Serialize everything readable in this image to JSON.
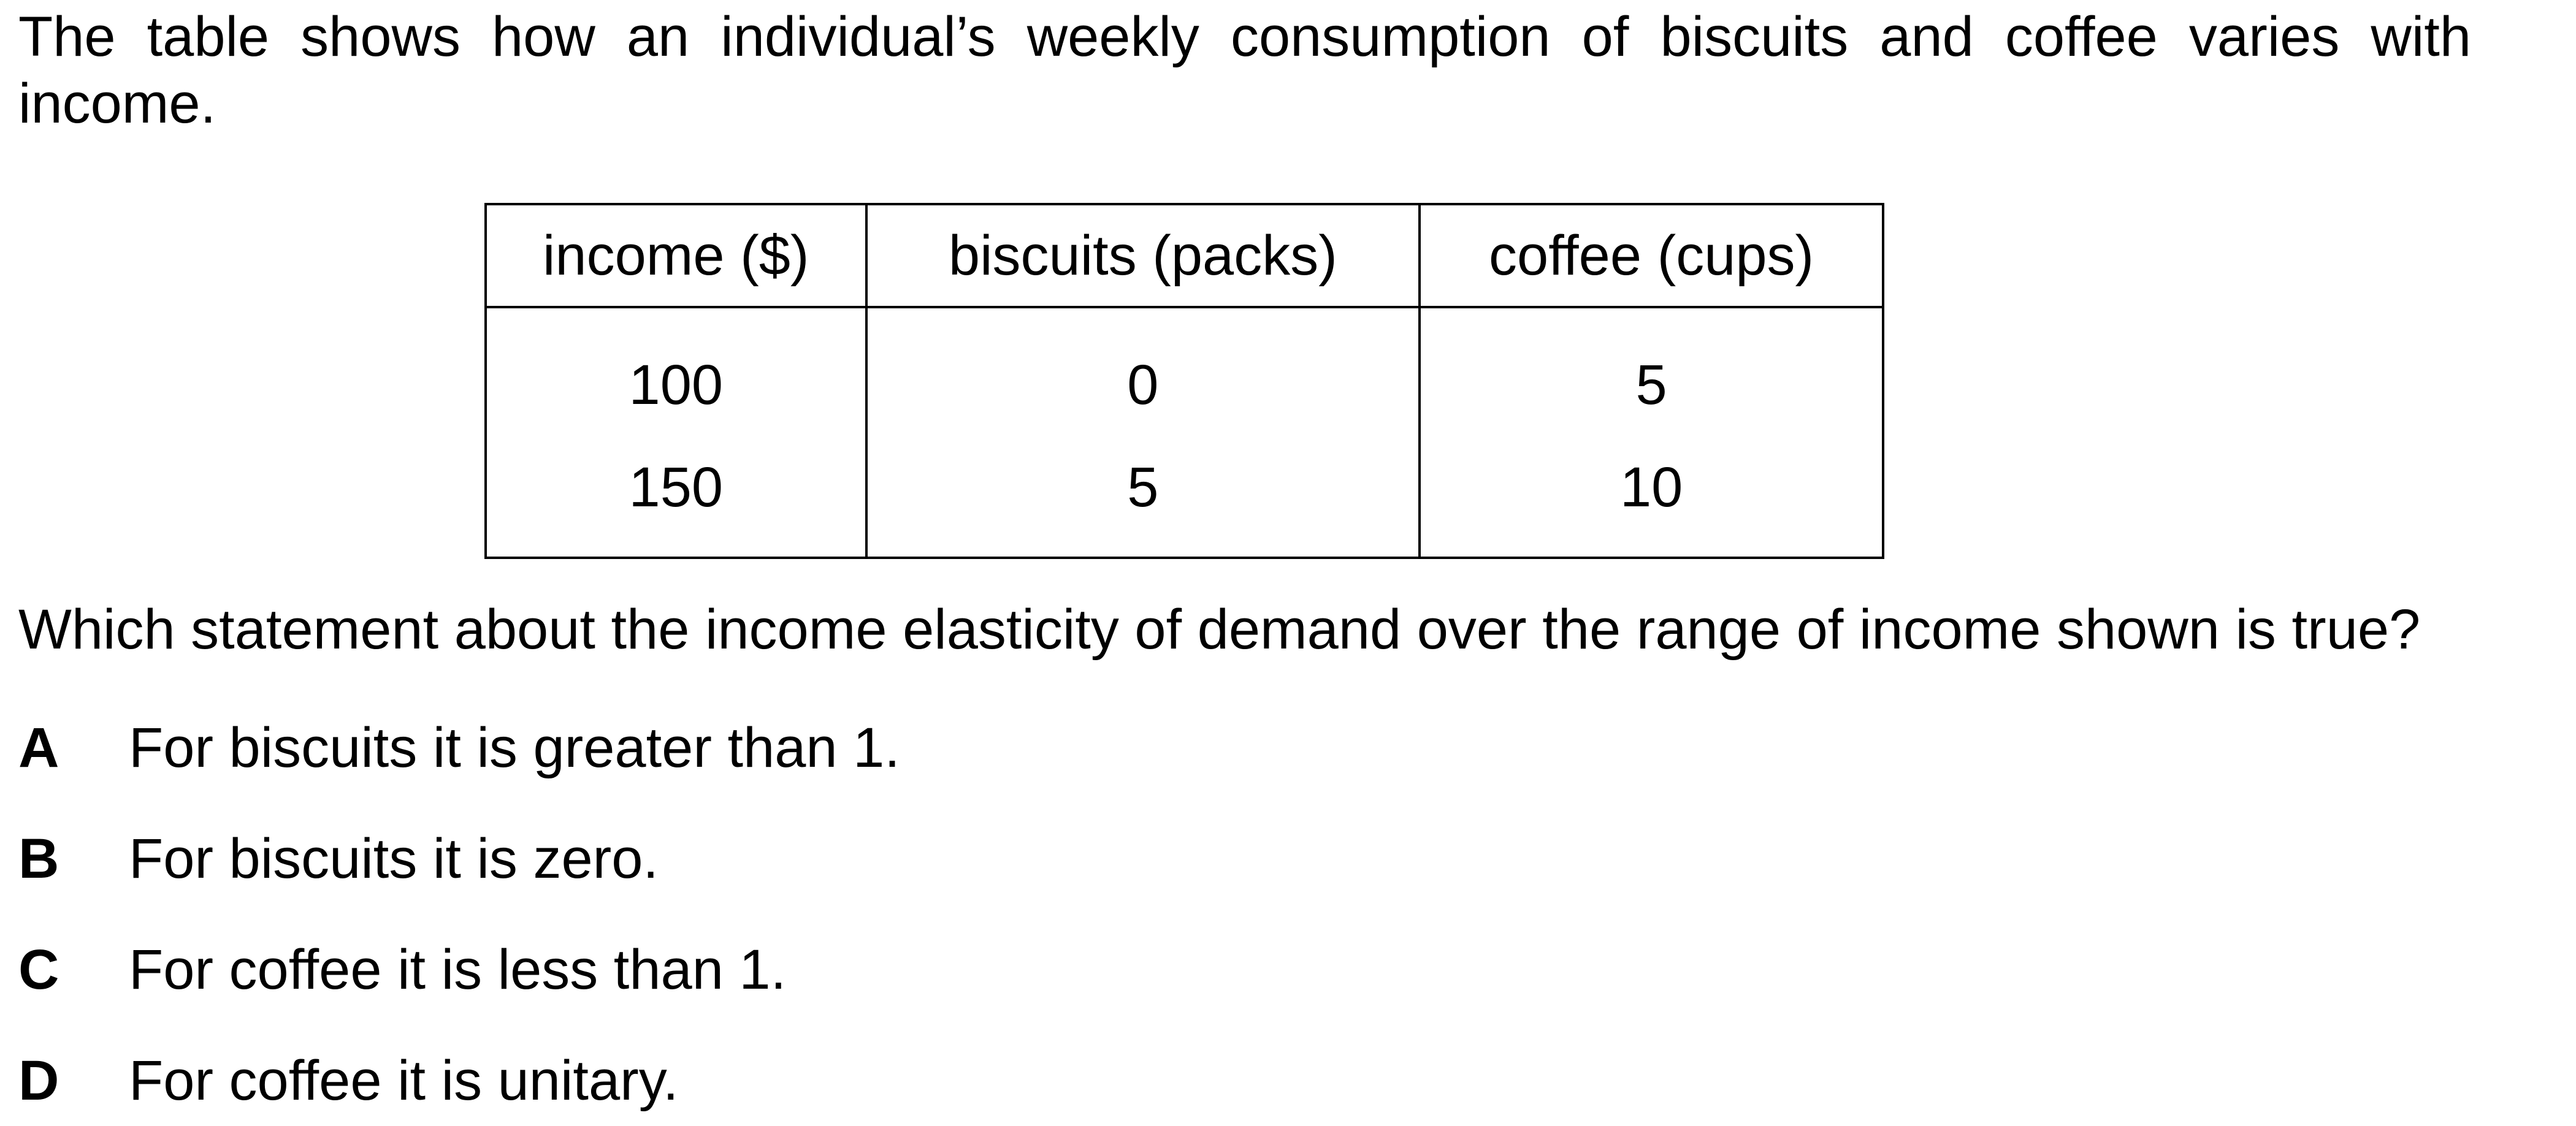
{
  "intro": {
    "line1": "The table shows how an individual’s weekly consumption of biscuits and coffee varies with",
    "line2": "income."
  },
  "table": {
    "headers": [
      "income ($)",
      "biscuits (packs)",
      "coffee (cups)"
    ],
    "rows": [
      [
        "100",
        "0",
        "5"
      ],
      [
        "150",
        "5",
        "10"
      ]
    ]
  },
  "question": "Which statement about the income elasticity of demand over the range of income shown is true?",
  "options": [
    {
      "letter": "A",
      "text": "For biscuits it is greater than 1."
    },
    {
      "letter": "B",
      "text": "For biscuits it is zero."
    },
    {
      "letter": "C",
      "text": "For coffee it is less than 1."
    },
    {
      "letter": "D",
      "text": "For coffee it is unitary."
    }
  ]
}
